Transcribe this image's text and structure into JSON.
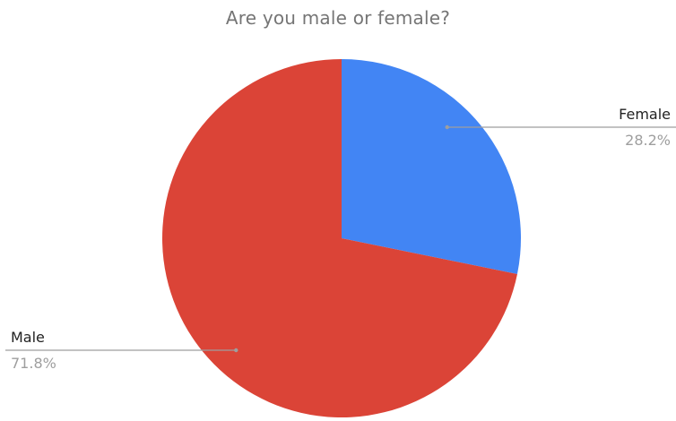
{
  "chart_data": {
    "type": "pie",
    "title": "Are you male or female?",
    "slices": [
      {
        "label": "Female",
        "value": 28.2,
        "display": "28.2%",
        "color": "#4285f4"
      },
      {
        "label": "Male",
        "value": 71.8,
        "display": "71.8%",
        "color": "#db4437"
      }
    ],
    "start_angle": "12 o'clock",
    "direction": "clockwise",
    "legend": "none",
    "labels": "outside with leader lines"
  }
}
